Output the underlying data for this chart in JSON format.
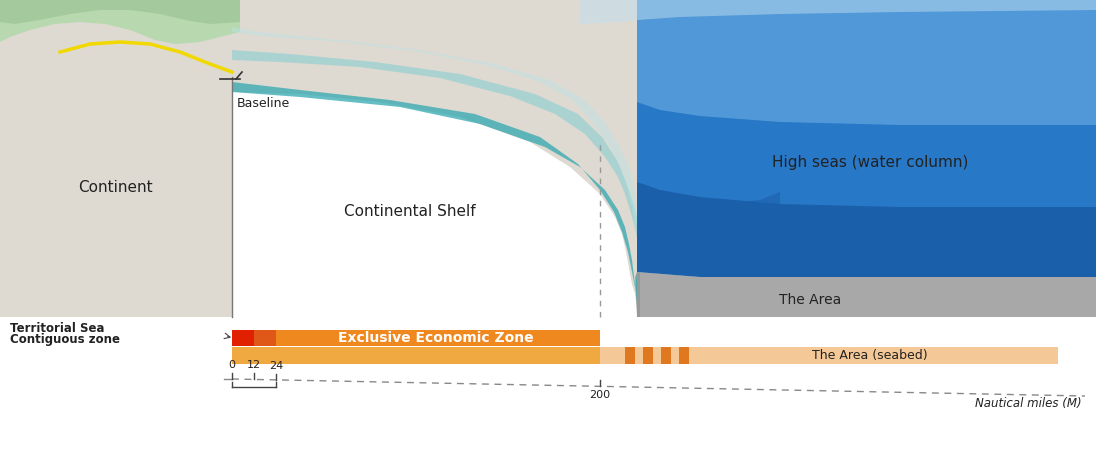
{
  "bg_color": "#ffffff",
  "land_green": "#b8d8b0",
  "land_green_dark": "#98c090",
  "continent_beige": "#dedad2",
  "shelf_beige": "#d8d4c8",
  "seabed_gray": "#a8a8a8",
  "seabed_gray_dark": "#989898",
  "deep_blue_dark": "#1a5faa",
  "deep_blue_mid": "#2878c8",
  "deep_blue_light": "#5098d8",
  "sky_blue": "#c0dff0",
  "teal_dark": "#30a8b0",
  "teal_light": "#80ccd0",
  "teal_surf": "#b8e4e8",
  "yellow_line": "#f0d800",
  "bar_red": "#e02000",
  "bar_orange_dark": "#e06800",
  "bar_orange_mid": "#f08820",
  "bar_orange_light": "#f0a840",
  "bar_peach": "#f5c898",
  "bar_stripe": "#e07820",
  "axis_line": "#888888",
  "text_dark": "#222222",
  "text_mid": "#444444",
  "labels": {
    "continent": "Continent",
    "continental_shelf": "Continental Shelf",
    "high_seas": "High seas (water column)",
    "the_area": "The Area",
    "the_area_seabed": "The Area (seabed)",
    "baseline": "Baseline",
    "territorial_sea": "Territorial Sea",
    "contiguous_zone": "Contiguous zone",
    "eez": "Exclusive Economic Zone",
    "nautical_miles": "Nautical miles (M)"
  }
}
